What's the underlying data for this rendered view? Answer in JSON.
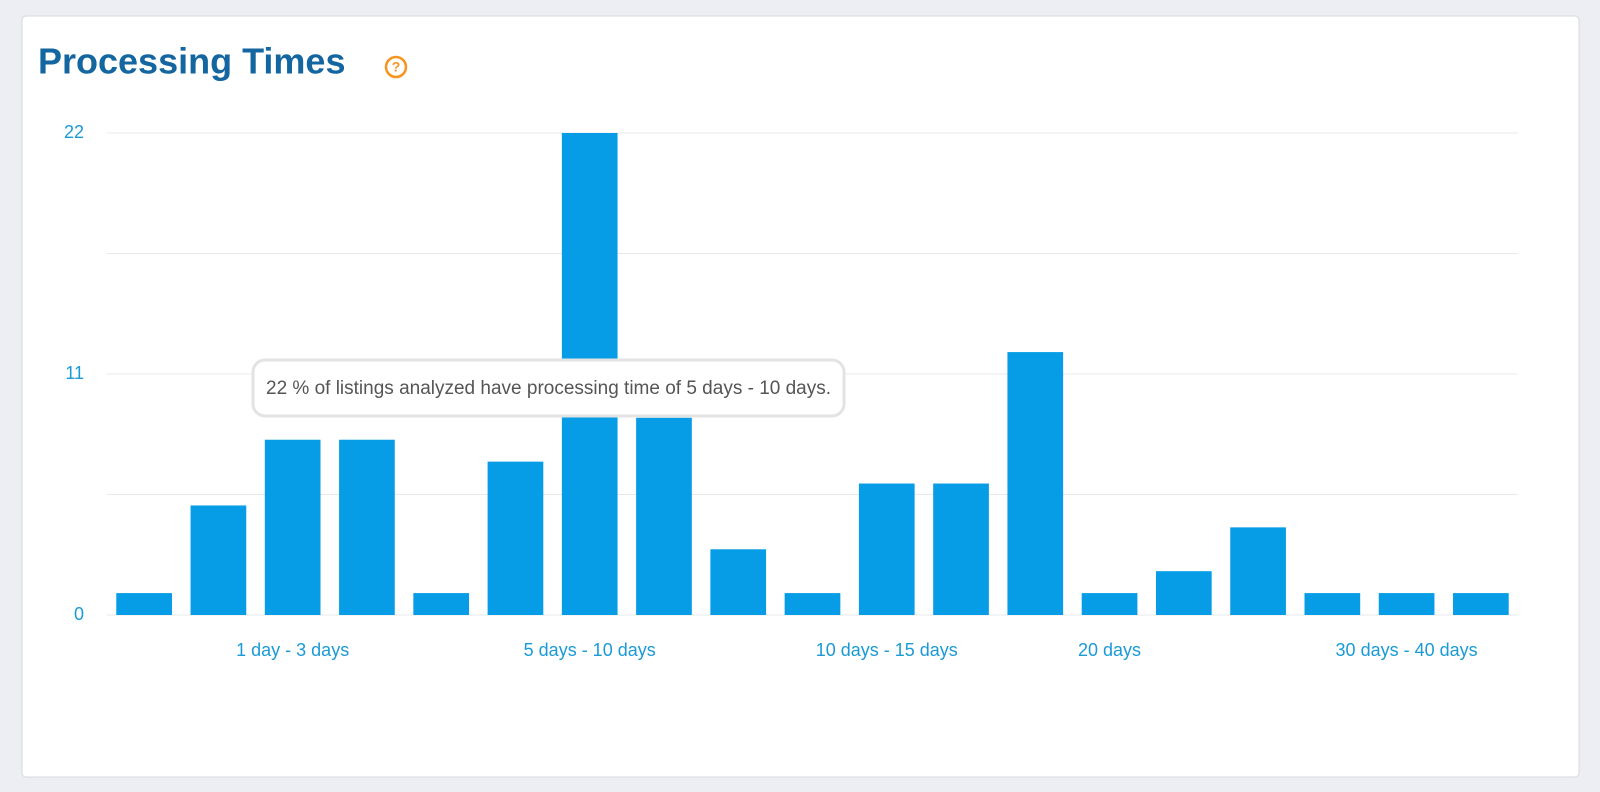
{
  "chart_data": {
    "type": "bar",
    "title": "Processing Times",
    "help_icon": "?",
    "annotation": "22 % of listings analyzed have processing time of 5 days - 10 days.",
    "categories": [
      null,
      null,
      "1 day - 3 days",
      null,
      null,
      null,
      "5 days - 10 days",
      null,
      null,
      null,
      "10 days - 15 days",
      null,
      null,
      "20 days",
      null,
      null,
      null,
      "30 days - 40 days",
      null
    ],
    "values": [
      1,
      5,
      8,
      8,
      1,
      7,
      22,
      9,
      3,
      1,
      6,
      6,
      12,
      1,
      2,
      4,
      1,
      1,
      1
    ],
    "color": "#069de6",
    "ylim": [
      0,
      22
    ],
    "yticks": [
      0,
      11,
      22
    ],
    "yminor": [
      5.5,
      16.5
    ],
    "grid": true
  }
}
